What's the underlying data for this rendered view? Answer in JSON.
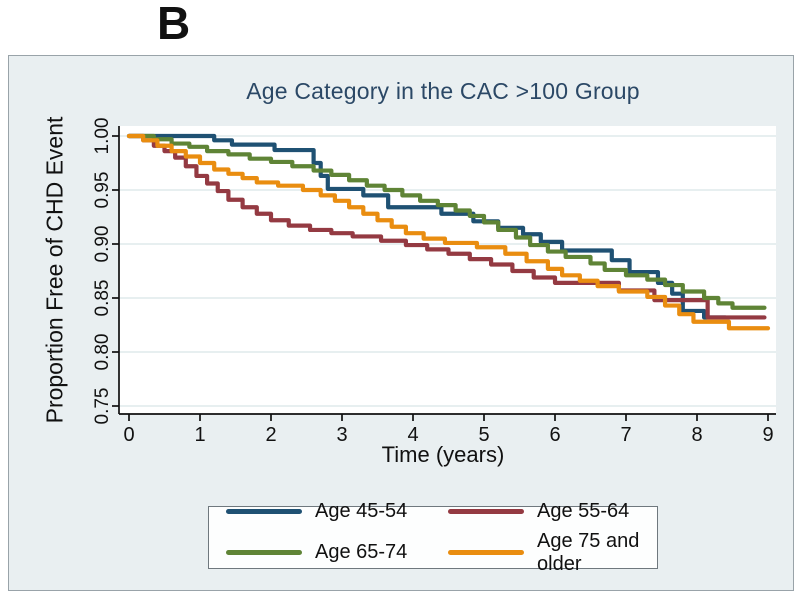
{
  "panel_label": "B",
  "chart_data": {
    "type": "line",
    "subtype": "kaplan-meier-step",
    "title": "Age Category in the CAC >100 Group",
    "xlabel": "Time (years)",
    "ylabel": "Proportion Free of CHD Event",
    "xlim": [
      0,
      9
    ],
    "ylim": [
      0.74,
      1.005
    ],
    "grid": true,
    "legend_position": "bottom",
    "background_color": "#e9eff1",
    "plot_background": "#ffffff",
    "gridline_color": "#dfeaec",
    "title_color": "#2b4866",
    "xticks": [
      0,
      1,
      2,
      3,
      4,
      5,
      6,
      7,
      8,
      9
    ],
    "yticks": [
      {
        "value": 1.0,
        "label": "1.00"
      },
      {
        "value": 0.95,
        "label": "0.95"
      },
      {
        "value": 0.9,
        "label": "0.90"
      },
      {
        "value": 0.85,
        "label": "0.85"
      },
      {
        "value": 0.8,
        "label": "0.80"
      },
      {
        "value": 0.75,
        "label": "0.75"
      }
    ],
    "series": [
      {
        "name": "Age 45-54",
        "color": "#1f5173",
        "points": [
          [
            0,
            1.0
          ],
          [
            1.2,
            0.996
          ],
          [
            1.45,
            0.992
          ],
          [
            2.05,
            0.987
          ],
          [
            2.6,
            0.975
          ],
          [
            2.7,
            0.963
          ],
          [
            2.8,
            0.951
          ],
          [
            3.3,
            0.945
          ],
          [
            3.65,
            0.934
          ],
          [
            4.4,
            0.928
          ],
          [
            4.85,
            0.921
          ],
          [
            5.2,
            0.915
          ],
          [
            5.55,
            0.909
          ],
          [
            5.8,
            0.902
          ],
          [
            6.1,
            0.894
          ],
          [
            6.8,
            0.885
          ],
          [
            7.05,
            0.874
          ],
          [
            7.45,
            0.864
          ],
          [
            7.65,
            0.854
          ],
          [
            7.8,
            0.838
          ],
          [
            8.1,
            0.832
          ],
          [
            8.4,
            0.832
          ]
        ]
      },
      {
        "name": "Age 55-64",
        "color": "#943a42",
        "points": [
          [
            0,
            1.0
          ],
          [
            0.2,
            0.996
          ],
          [
            0.35,
            0.991
          ],
          [
            0.5,
            0.986
          ],
          [
            0.65,
            0.98
          ],
          [
            0.8,
            0.972
          ],
          [
            0.95,
            0.963
          ],
          [
            1.1,
            0.956
          ],
          [
            1.25,
            0.949
          ],
          [
            1.4,
            0.941
          ],
          [
            1.6,
            0.934
          ],
          [
            1.8,
            0.928
          ],
          [
            2.0,
            0.922
          ],
          [
            2.25,
            0.917
          ],
          [
            2.55,
            0.913
          ],
          [
            2.85,
            0.91
          ],
          [
            3.15,
            0.907
          ],
          [
            3.55,
            0.903
          ],
          [
            3.9,
            0.899
          ],
          [
            4.2,
            0.895
          ],
          [
            4.5,
            0.891
          ],
          [
            4.8,
            0.886
          ],
          [
            5.1,
            0.881
          ],
          [
            5.4,
            0.875
          ],
          [
            5.7,
            0.869
          ],
          [
            6.0,
            0.864
          ],
          [
            6.9,
            0.857
          ],
          [
            7.4,
            0.848
          ],
          [
            8.15,
            0.832
          ],
          [
            8.95,
            0.832
          ]
        ]
      },
      {
        "name": "Age 65-74",
        "color": "#5f8436",
        "points": [
          [
            0,
            1.0
          ],
          [
            0.35,
            0.997
          ],
          [
            0.6,
            0.993
          ],
          [
            0.85,
            0.99
          ],
          [
            1.1,
            0.986
          ],
          [
            1.4,
            0.983
          ],
          [
            1.7,
            0.979
          ],
          [
            2.0,
            0.976
          ],
          [
            2.3,
            0.972
          ],
          [
            2.6,
            0.968
          ],
          [
            2.85,
            0.964
          ],
          [
            3.1,
            0.959
          ],
          [
            3.35,
            0.954
          ],
          [
            3.6,
            0.95
          ],
          [
            3.85,
            0.945
          ],
          [
            4.1,
            0.94
          ],
          [
            4.35,
            0.936
          ],
          [
            4.6,
            0.931
          ],
          [
            4.8,
            0.926
          ],
          [
            5.0,
            0.92
          ],
          [
            5.2,
            0.913
          ],
          [
            5.45,
            0.906
          ],
          [
            5.65,
            0.899
          ],
          [
            5.9,
            0.893
          ],
          [
            6.15,
            0.888
          ],
          [
            6.5,
            0.882
          ],
          [
            6.7,
            0.876
          ],
          [
            7.0,
            0.871
          ],
          [
            7.3,
            0.867
          ],
          [
            7.55,
            0.862
          ],
          [
            7.8,
            0.856
          ],
          [
            8.1,
            0.85
          ],
          [
            8.3,
            0.845
          ],
          [
            8.5,
            0.841
          ],
          [
            8.95,
            0.841
          ]
        ]
      },
      {
        "name": "Age 75 and older",
        "color": "#e98d10",
        "points": [
          [
            0,
            1.0
          ],
          [
            0.2,
            0.996
          ],
          [
            0.4,
            0.991
          ],
          [
            0.6,
            0.986
          ],
          [
            0.8,
            0.981
          ],
          [
            1.0,
            0.975
          ],
          [
            1.2,
            0.969
          ],
          [
            1.4,
            0.965
          ],
          [
            1.6,
            0.961
          ],
          [
            1.8,
            0.957
          ],
          [
            2.1,
            0.954
          ],
          [
            2.45,
            0.95
          ],
          [
            2.7,
            0.945
          ],
          [
            2.9,
            0.94
          ],
          [
            3.1,
            0.934
          ],
          [
            3.3,
            0.928
          ],
          [
            3.5,
            0.922
          ],
          [
            3.7,
            0.916
          ],
          [
            3.9,
            0.91
          ],
          [
            4.15,
            0.905
          ],
          [
            4.45,
            0.901
          ],
          [
            4.9,
            0.897
          ],
          [
            5.3,
            0.891
          ],
          [
            5.6,
            0.884
          ],
          [
            5.9,
            0.877
          ],
          [
            6.1,
            0.871
          ],
          [
            6.35,
            0.866
          ],
          [
            6.6,
            0.861
          ],
          [
            6.9,
            0.856
          ],
          [
            7.3,
            0.851
          ],
          [
            7.55,
            0.843
          ],
          [
            7.75,
            0.835
          ],
          [
            7.95,
            0.828
          ],
          [
            8.45,
            0.822
          ],
          [
            9.0,
            0.822
          ]
        ]
      }
    ]
  }
}
